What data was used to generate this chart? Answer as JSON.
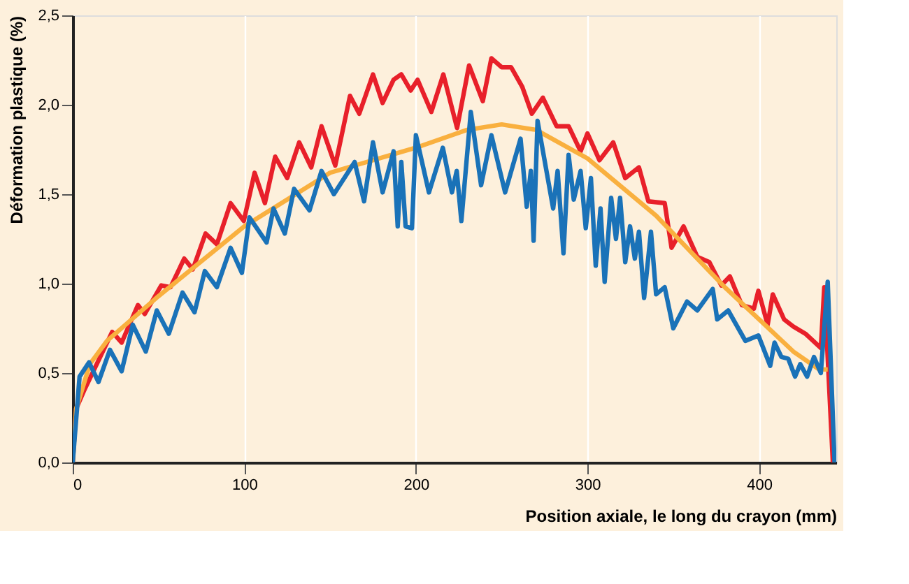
{
  "chart_data": {
    "type": "line",
    "xlabel": "Position axiale, le long du crayon (mm)",
    "ylabel": "Déformation plastique (%)",
    "xlim": [
      0,
      445
    ],
    "xticks": [
      0,
      100,
      200,
      300,
      400
    ],
    "ylim": [
      0,
      2.5
    ],
    "yticks": [
      {
        "value": 0,
        "label": "0,0"
      },
      {
        "value": 0.5,
        "label": "0,5"
      },
      {
        "value": 1,
        "label": "1,0"
      },
      {
        "value": 1.5,
        "label": "1,5"
      },
      {
        "value": 2,
        "label": "2,0"
      },
      {
        "value": 2.5,
        "label": "2,5"
      }
    ],
    "grid": "x",
    "legend": false,
    "marker": "none",
    "line_style": "solid",
    "series": [
      {
        "color": "#e8202a",
        "x": [
          0,
          2,
          7,
          15,
          23,
          28.5,
          38,
          42,
          51.6,
          57,
          65,
          70,
          77.4,
          84,
          92,
          99.7,
          106,
          112,
          118,
          125,
          132,
          139,
          145,
          153,
          161.6,
          167,
          175,
          180.6,
          187,
          191.5,
          197,
          201,
          209,
          216,
          224,
          231,
          239,
          244,
          250,
          255.5,
          262,
          267.6,
          274,
          282,
          289,
          296,
          300,
          307,
          315,
          322,
          330,
          335.5,
          345,
          349,
          356,
          364,
          371,
          378,
          383,
          386,
          390,
          397,
          399.6,
          405,
          408,
          414.6,
          420,
          427,
          436,
          438,
          443
        ],
        "values": [
          0,
          0.3,
          0.41,
          0.57,
          0.73,
          0.67,
          0.88,
          0.83,
          0.99,
          0.98,
          1.14,
          1.08,
          1.28,
          1.22,
          1.45,
          1.35,
          1.62,
          1.45,
          1.71,
          1.59,
          1.79,
          1.65,
          1.88,
          1.66,
          2.05,
          1.95,
          2.17,
          2.01,
          2.14,
          2.17,
          2.08,
          2.14,
          1.96,
          2.17,
          1.87,
          2.22,
          2.02,
          2.26,
          2.21,
          2.21,
          2.1,
          1.95,
          2.04,
          1.88,
          1.88,
          1.74,
          1.84,
          1.69,
          1.79,
          1.59,
          1.65,
          1.46,
          1.45,
          1.2,
          1.32,
          1.15,
          1.12,
          0.99,
          1.04,
          0.97,
          0.88,
          0.86,
          0.96,
          0.77,
          0.94,
          0.8,
          0.76,
          0.72,
          0.64,
          0.98,
          0
        ]
      },
      {
        "color": "#f9b03f",
        "x": [
          0,
          2,
          10,
          20,
          50,
          100,
          150,
          200,
          230,
          250,
          270,
          300,
          340,
          380,
          400,
          420,
          435,
          440
        ],
        "values": [
          0,
          0.3,
          0.55,
          0.68,
          0.93,
          1.32,
          1.62,
          1.76,
          1.86,
          1.89,
          1.86,
          1.7,
          1.38,
          0.98,
          0.8,
          0.62,
          0.52,
          0.52
        ]
      },
      {
        "color": "#1a72b8",
        "x": [
          0,
          4,
          9.5,
          15,
          21.7,
          28.5,
          35,
          42.6,
          49,
          56,
          64,
          71,
          77,
          84,
          92,
          98.6,
          103,
          113,
          117,
          123.6,
          129,
          138,
          145,
          152.2,
          164.3,
          169.8,
          175,
          180.6,
          187,
          189.4,
          191.5,
          194,
          197.7,
          200,
          207.6,
          215.7,
          221,
          223.8,
          226.5,
          232,
          238,
          244,
          252,
          261,
          264.6,
          267,
          268.6,
          270.9,
          280,
          282.6,
          286,
          289,
          292,
          296,
          299,
          302,
          304.8,
          307.6,
          310,
          313.8,
          316.6,
          319,
          322,
          324.8,
          327.6,
          330,
          333,
          337,
          340,
          345,
          350,
          358,
          364,
          373,
          375.6,
          382,
          392,
          399.6,
          406.5,
          409,
          413,
          417,
          421,
          424,
          428,
          432,
          436,
          440,
          444
        ],
        "values": [
          0,
          0.48,
          0.56,
          0.45,
          0.63,
          0.51,
          0.77,
          0.62,
          0.85,
          0.72,
          0.95,
          0.84,
          1.07,
          0.98,
          1.2,
          1.06,
          1.37,
          1.23,
          1.42,
          1.28,
          1.53,
          1.41,
          1.63,
          1.5,
          1.68,
          1.46,
          1.79,
          1.51,
          1.74,
          1.32,
          1.68,
          1.32,
          1.31,
          1.83,
          1.51,
          1.76,
          1.51,
          1.63,
          1.35,
          1.96,
          1.55,
          1.83,
          1.51,
          1.81,
          1.43,
          1.63,
          1.24,
          1.91,
          1.42,
          1.63,
          1.17,
          1.72,
          1.47,
          1.63,
          1.31,
          1.59,
          1.1,
          1.42,
          1.01,
          1.48,
          1.25,
          1.48,
          1.12,
          1.32,
          1.14,
          1.29,
          0.92,
          1.29,
          0.94,
          0.98,
          0.75,
          0.9,
          0.85,
          0.97,
          0.8,
          0.85,
          0.68,
          0.71,
          0.54,
          0.67,
          0.59,
          0.58,
          0.48,
          0.55,
          0.48,
          0.59,
          0.5,
          1.01,
          0
        ]
      }
    ]
  }
}
